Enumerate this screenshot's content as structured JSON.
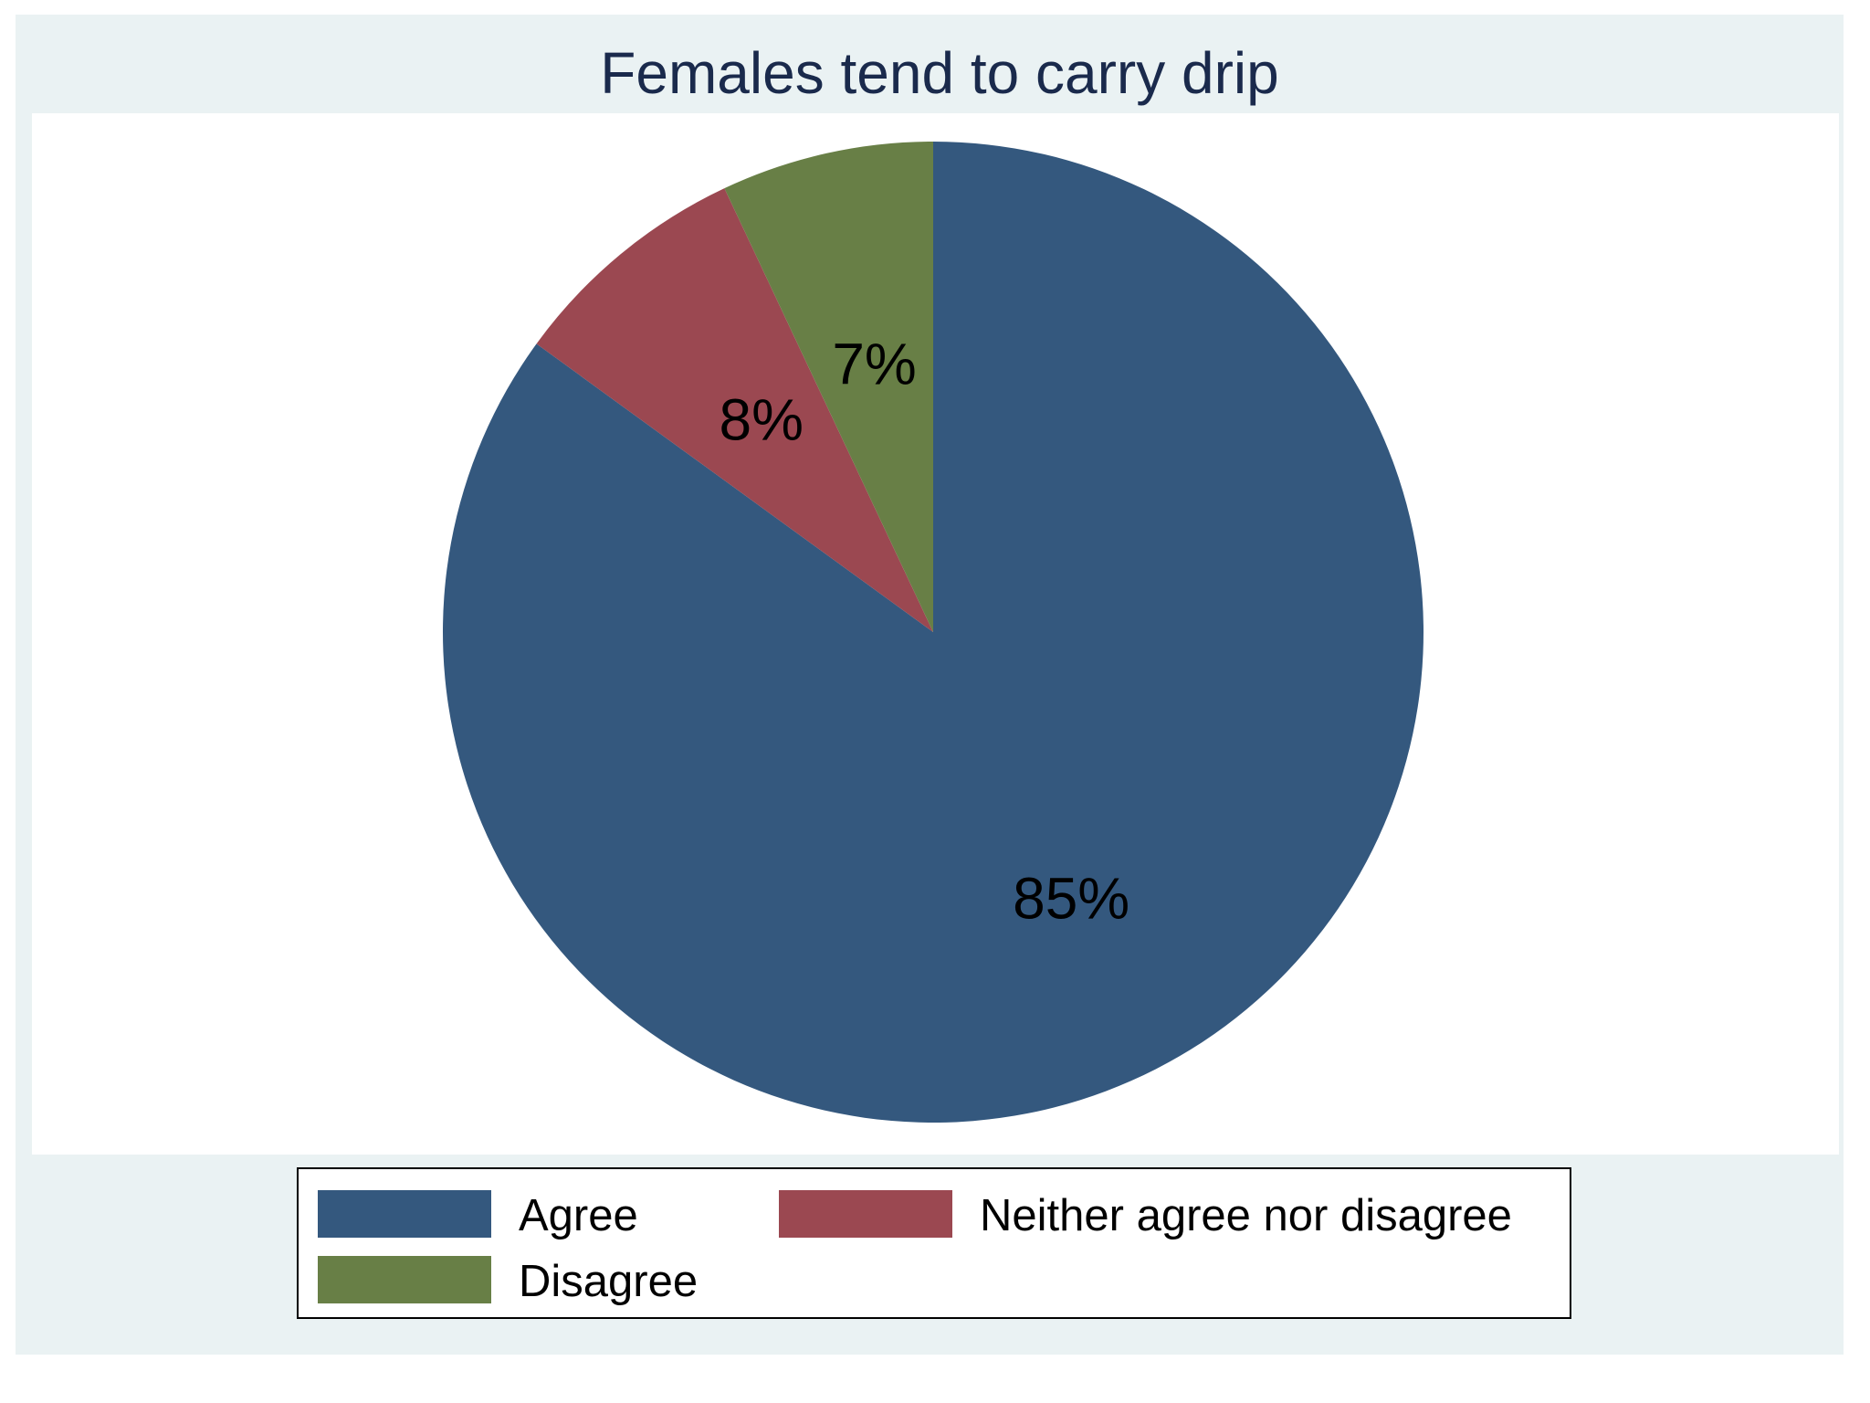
{
  "chart_data": {
    "type": "pie",
    "title": "Females tend to carry drip",
    "slices": [
      {
        "name": "Agree",
        "value": 85,
        "label": "85%",
        "color": "#34587e"
      },
      {
        "name": "Neither agree nor disagree",
        "value": 8,
        "label": "8%",
        "color": "#9b4851"
      },
      {
        "name": "Disagree",
        "value": 7,
        "label": "7%",
        "color": "#687f46"
      }
    ],
    "legend": {
      "placement": "bottom",
      "entries": [
        "Agree",
        "Neither agree nor disagree",
        "Disagree"
      ]
    },
    "colors": {
      "frame_background": "#eaf2f3",
      "plot_background": "#ffffff",
      "title": "#1a2a4c"
    }
  }
}
